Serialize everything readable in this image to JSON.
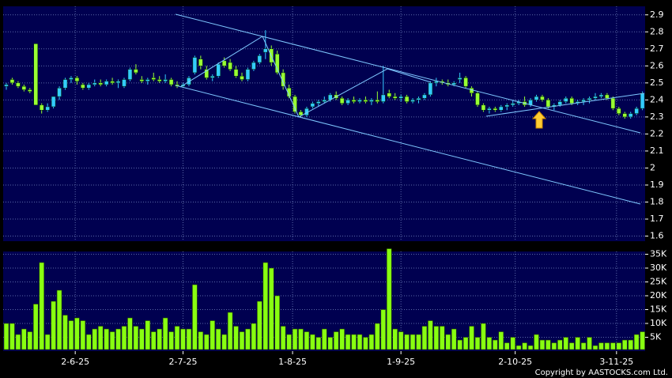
{
  "chart_data": [
    {
      "type": "candlestick",
      "up_color": "#33ccff",
      "down_color": "#99ff33",
      "grid": true,
      "ylim": [
        1.57,
        2.95
      ],
      "yticks": [
        1.6,
        1.7,
        1.8,
        1.9,
        2,
        2.1,
        2.2,
        2.3,
        2.4,
        2.5,
        2.6,
        2.7,
        2.8,
        2.9
      ],
      "candles": [
        [
          2.48,
          2.5,
          2.46,
          2.49
        ],
        [
          2.52,
          2.53,
          2.49,
          2.5
        ],
        [
          2.5,
          2.51,
          2.47,
          2.48
        ],
        [
          2.48,
          2.49,
          2.45,
          2.46
        ],
        [
          2.46,
          2.47,
          2.44,
          2.45
        ],
        [
          2.73,
          2.73,
          2.37,
          2.37
        ],
        [
          2.37,
          2.38,
          2.32,
          2.34
        ],
        [
          2.34,
          2.38,
          2.33,
          2.36
        ],
        [
          2.36,
          2.42,
          2.35,
          2.42
        ],
        [
          2.42,
          2.48,
          2.4,
          2.47
        ],
        [
          2.47,
          2.53,
          2.46,
          2.52
        ],
        [
          2.52,
          2.54,
          2.5,
          2.53
        ],
        [
          2.53,
          2.54,
          2.49,
          2.51
        ],
        [
          2.49,
          2.5,
          2.46,
          2.47
        ],
        [
          2.47,
          2.5,
          2.46,
          2.49
        ],
        [
          2.49,
          2.52,
          2.48,
          2.5
        ],
        [
          2.5,
          2.52,
          2.48,
          2.49
        ],
        [
          2.49,
          2.52,
          2.48,
          2.51
        ],
        [
          2.51,
          2.53,
          2.49,
          2.5
        ],
        [
          2.5,
          2.52,
          2.47,
          2.51
        ],
        [
          2.48,
          2.53,
          2.47,
          2.52
        ],
        [
          2.52,
          2.59,
          2.51,
          2.58
        ],
        [
          2.58,
          2.61,
          2.55,
          2.56
        ],
        [
          2.52,
          2.54,
          2.5,
          2.51
        ],
        [
          2.51,
          2.53,
          2.49,
          2.52
        ],
        [
          2.53,
          2.56,
          2.51,
          2.52
        ],
        [
          2.52,
          2.54,
          2.5,
          2.51
        ],
        [
          2.51,
          2.55,
          2.5,
          2.52
        ],
        [
          2.52,
          2.53,
          2.48,
          2.49
        ],
        [
          2.49,
          2.51,
          2.47,
          2.48
        ],
        [
          2.48,
          2.5,
          2.47,
          2.49
        ],
        [
          2.49,
          2.54,
          2.48,
          2.53
        ],
        [
          2.56,
          2.66,
          2.55,
          2.65
        ],
        [
          2.64,
          2.66,
          2.58,
          2.6
        ],
        [
          2.58,
          2.6,
          2.52,
          2.53
        ],
        [
          2.53,
          2.55,
          2.51,
          2.54
        ],
        [
          2.54,
          2.62,
          2.53,
          2.61
        ],
        [
          2.63,
          2.65,
          2.59,
          2.6
        ],
        [
          2.62,
          2.64,
          2.57,
          2.58
        ],
        [
          2.58,
          2.6,
          2.53,
          2.54
        ],
        [
          2.54,
          2.56,
          2.51,
          2.52
        ],
        [
          2.52,
          2.59,
          2.51,
          2.58
        ],
        [
          2.58,
          2.63,
          2.57,
          2.62
        ],
        [
          2.62,
          2.67,
          2.61,
          2.66
        ],
        [
          2.68,
          2.81,
          2.64,
          2.7
        ],
        [
          2.7,
          2.72,
          2.6,
          2.62
        ],
        [
          2.67,
          2.69,
          2.55,
          2.56
        ],
        [
          2.56,
          2.58,
          2.46,
          2.48
        ],
        [
          2.47,
          2.49,
          2.41,
          2.42
        ],
        [
          2.42,
          2.43,
          2.32,
          2.33
        ],
        [
          2.33,
          2.34,
          2.3,
          2.31
        ],
        [
          2.31,
          2.36,
          2.3,
          2.35
        ],
        [
          2.36,
          2.39,
          2.35,
          2.38
        ],
        [
          2.38,
          2.4,
          2.36,
          2.39
        ],
        [
          2.39,
          2.42,
          2.38,
          2.4
        ],
        [
          2.4,
          2.44,
          2.39,
          2.43
        ],
        [
          2.43,
          2.45,
          2.4,
          2.41
        ],
        [
          2.41,
          2.42,
          2.37,
          2.38
        ],
        [
          2.38,
          2.41,
          2.37,
          2.4
        ],
        [
          2.4,
          2.42,
          2.38,
          2.39
        ],
        [
          2.39,
          2.41,
          2.38,
          2.4
        ],
        [
          2.4,
          2.42,
          2.38,
          2.39
        ],
        [
          2.39,
          2.41,
          2.37,
          2.4
        ],
        [
          2.4,
          2.45,
          2.38,
          2.39
        ],
        [
          2.39,
          2.6,
          2.38,
          2.43
        ],
        [
          2.44,
          2.46,
          2.41,
          2.42
        ],
        [
          2.42,
          2.44,
          2.4,
          2.41
        ],
        [
          2.41,
          2.43,
          2.39,
          2.42
        ],
        [
          2.42,
          2.43,
          2.38,
          2.39
        ],
        [
          2.39,
          2.41,
          2.38,
          2.4
        ],
        [
          2.4,
          2.42,
          2.38,
          2.41
        ],
        [
          2.41,
          2.44,
          2.4,
          2.43
        ],
        [
          2.43,
          2.51,
          2.42,
          2.5
        ],
        [
          2.5,
          2.53,
          2.48,
          2.51
        ],
        [
          2.51,
          2.52,
          2.49,
          2.5
        ],
        [
          2.5,
          2.52,
          2.48,
          2.49
        ],
        [
          2.49,
          2.51,
          2.48,
          2.5
        ],
        [
          2.52,
          2.56,
          2.5,
          2.53
        ],
        [
          2.53,
          2.54,
          2.47,
          2.48
        ],
        [
          2.47,
          2.48,
          2.42,
          2.44
        ],
        [
          2.44,
          2.45,
          2.36,
          2.37
        ],
        [
          2.37,
          2.38,
          2.33,
          2.34
        ],
        [
          2.34,
          2.36,
          2.32,
          2.35
        ],
        [
          2.35,
          2.36,
          2.33,
          2.34
        ],
        [
          2.34,
          2.37,
          2.33,
          2.36
        ],
        [
          2.36,
          2.38,
          2.34,
          2.37
        ],
        [
          2.37,
          2.4,
          2.36,
          2.38
        ],
        [
          2.38,
          2.4,
          2.37,
          2.39
        ],
        [
          2.39,
          2.42,
          2.36,
          2.37
        ],
        [
          2.37,
          2.41,
          2.36,
          2.4
        ],
        [
          2.4,
          2.43,
          2.39,
          2.42
        ],
        [
          2.42,
          2.43,
          2.39,
          2.4
        ],
        [
          2.4,
          2.41,
          2.35,
          2.36
        ],
        [
          2.36,
          2.38,
          2.34,
          2.37
        ],
        [
          2.37,
          2.4,
          2.36,
          2.39
        ],
        [
          2.39,
          2.42,
          2.38,
          2.41
        ],
        [
          2.41,
          2.42,
          2.37,
          2.38
        ],
        [
          2.38,
          2.4,
          2.37,
          2.39
        ],
        [
          2.39,
          2.41,
          2.37,
          2.4
        ],
        [
          2.4,
          2.42,
          2.38,
          2.41
        ],
        [
          2.41,
          2.44,
          2.4,
          2.42
        ],
        [
          2.42,
          2.44,
          2.41,
          2.43
        ],
        [
          2.43,
          2.44,
          2.4,
          2.41
        ],
        [
          2.41,
          2.42,
          2.34,
          2.35
        ],
        [
          2.35,
          2.36,
          2.31,
          2.32
        ],
        [
          2.32,
          2.33,
          2.29,
          2.3
        ],
        [
          2.3,
          2.33,
          2.29,
          2.32
        ],
        [
          2.32,
          2.36,
          2.31,
          2.35
        ],
        [
          2.35,
          2.45,
          2.34,
          2.44
        ]
      ]
    },
    {
      "type": "bar",
      "color": "#88ff11",
      "grid": true,
      "ylim": [
        0,
        36000
      ],
      "yticks": [
        {
          "value": 5000,
          "label": "5K"
        },
        {
          "value": 10000,
          "label": "10K"
        },
        {
          "value": 15000,
          "label": "15K"
        },
        {
          "value": 20000,
          "label": "20K"
        },
        {
          "value": 25000,
          "label": "25K"
        },
        {
          "value": 30000,
          "label": "30K"
        },
        {
          "value": 35000,
          "label": "35K"
        }
      ],
      "xticks": [
        {
          "value": 11.7,
          "label": "2-6-25"
        },
        {
          "value": 30,
          "label": "2-7-25"
        },
        {
          "value": 48.6,
          "label": "1-8-25"
        },
        {
          "value": 67,
          "label": "1-9-25"
        },
        {
          "value": 86.4,
          "label": "2-10-25"
        },
        {
          "value": 103.6,
          "label": "3-11-25"
        }
      ],
      "values": [
        10000,
        10000,
        6000,
        8000,
        7000,
        17000,
        32000,
        6000,
        18000,
        22000,
        13000,
        11000,
        12000,
        11000,
        6000,
        8000,
        9000,
        8000,
        7000,
        8000,
        9000,
        12000,
        9000,
        8000,
        11000,
        7000,
        8000,
        12000,
        7000,
        9000,
        8000,
        8000,
        24000,
        7000,
        6000,
        11000,
        8000,
        6000,
        14000,
        9000,
        7000,
        8000,
        10000,
        18000,
        32000,
        30000,
        20000,
        9000,
        6000,
        8000,
        8000,
        7000,
        6000,
        5000,
        8000,
        5000,
        7000,
        8000,
        6000,
        6000,
        6000,
        5000,
        6000,
        10000,
        15000,
        37000,
        8000,
        7000,
        6000,
        6000,
        6000,
        9000,
        11000,
        9000,
        9000,
        6000,
        8000,
        4000,
        5000,
        9000,
        5000,
        10000,
        5000,
        4000,
        7000,
        3000,
        5000,
        2000,
        3000,
        2000,
        6000,
        4000,
        4000,
        3000,
        4000,
        5000,
        3000,
        5000,
        3000,
        5000,
        2000,
        3000,
        3000,
        3000,
        3000,
        4000,
        4000,
        6000,
        7000
      ]
    }
  ],
  "copyright": "Copyright by AASTOCKS.com Ltd."
}
